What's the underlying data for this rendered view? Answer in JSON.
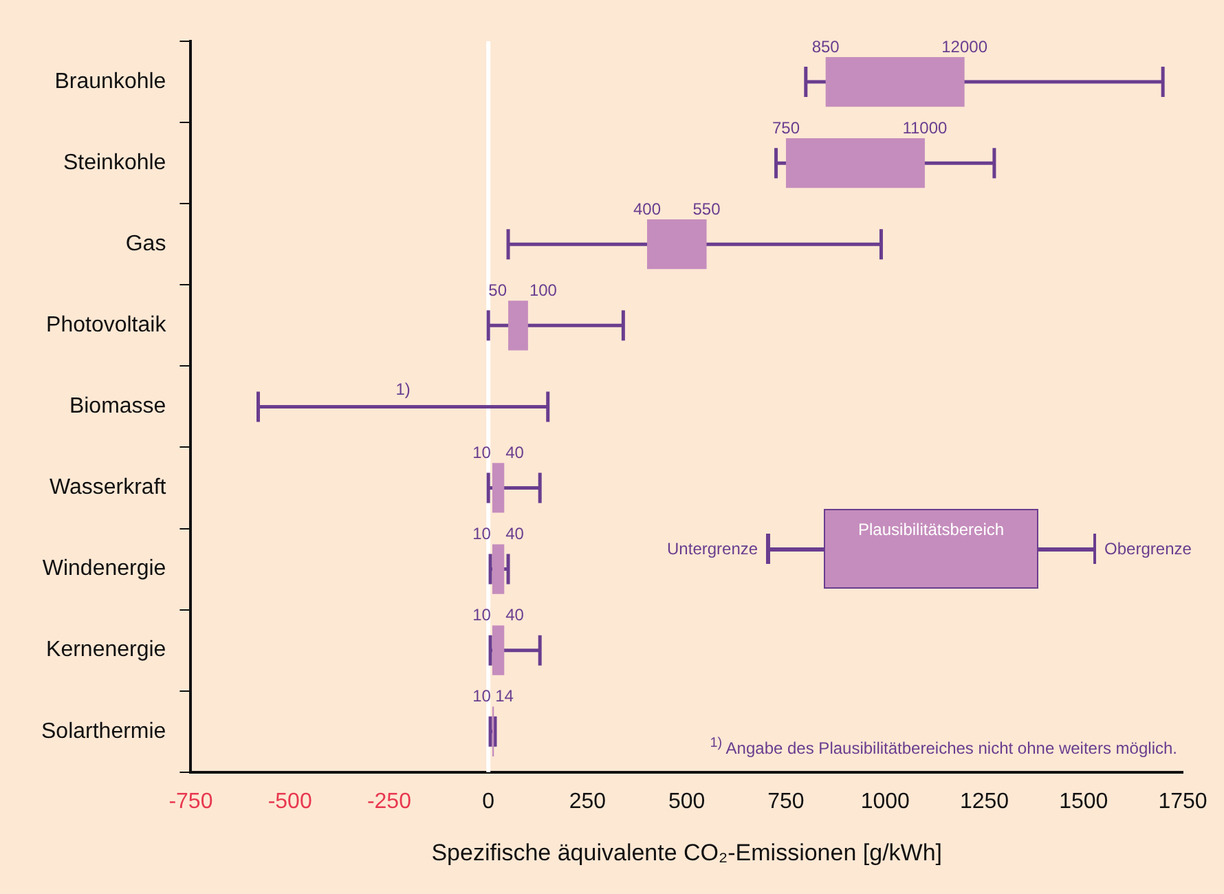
{
  "chart_data": {
    "type": "bar",
    "orientation": "horizontal",
    "xlabel": "Spezifische äquivalente CO₂-Emissionen [g/kWh]",
    "categories": [
      "Braunkohle",
      "Steinkohle",
      "Gas",
      "Photovoltaik",
      "Biomasse",
      "Wasserkraft",
      "Windenergie",
      "Kernenergie",
      "Solarthermie"
    ],
    "series": [
      {
        "name": "Plausibilitätsbereich",
        "color": "#c58dbd",
        "base": [
          850,
          750,
          400,
          50,
          null,
          10,
          10,
          10,
          10
        ],
        "values": [
          350,
          350,
          150,
          50,
          0,
          30,
          30,
          30,
          4
        ],
        "errors": [
          [
            800,
            1700
          ],
          [
            725,
            1275
          ],
          [
            50,
            990
          ],
          [
            0,
            340
          ],
          [
            -580,
            150
          ],
          [
            0,
            130
          ],
          [
            5,
            50
          ],
          [
            5,
            130
          ],
          [
            5,
            17
          ]
        ]
      }
    ],
    "xlim": [
      -750,
      1750
    ],
    "xticks": [
      -750,
      -500,
      -250,
      0,
      250,
      500,
      750,
      1000,
      1250,
      1500,
      1750
    ],
    "ref_lines": [
      {
        "axis": "x",
        "value": 0,
        "color": "#ffffff"
      }
    ],
    "legend": "right",
    "grid": false,
    "annotations": [
      "Untergrenze",
      "Obergrenze",
      "1)",
      "$^{1)}$ Angabe des Plausibilitätbereiches nicht ohne weiters möglich.",
      {
        "text": "850",
        "x": 850,
        "y": "Braunkohle"
      },
      {
        "text": "12000",
        "x": 1200,
        "y": "Braunkohle"
      },
      {
        "text": "750",
        "x": 750,
        "y": "Steinkohle"
      },
      {
        "text": "11000",
        "x": 1100,
        "y": "Steinkohle"
      },
      {
        "text": "400",
        "x": 400,
        "y": "Gas"
      },
      {
        "text": "550",
        "x": 550,
        "y": "Gas"
      },
      {
        "text": "50",
        "x": 50,
        "y": "Photovoltaik"
      },
      {
        "text": "100",
        "x": 100,
        "y": "Photovoltaik"
      },
      {
        "text": "10",
        "x": 10,
        "y": "Wasserkraft"
      },
      {
        "text": "40",
        "x": 40,
        "y": "Wasserkraft"
      },
      {
        "text": "10",
        "x": 10,
        "y": "Windenergie"
      },
      {
        "text": "40",
        "x": 40,
        "y": "Windenergie"
      },
      {
        "text": "10",
        "x": 10,
        "y": "Kernenergie"
      },
      {
        "text": "40",
        "x": 40,
        "y": "Kernenergie"
      },
      {
        "text": "10",
        "x": 10,
        "y": "Solarthermie"
      },
      {
        "text": "14",
        "x": 14,
        "y": "Solarthermie"
      }
    ]
  }
}
